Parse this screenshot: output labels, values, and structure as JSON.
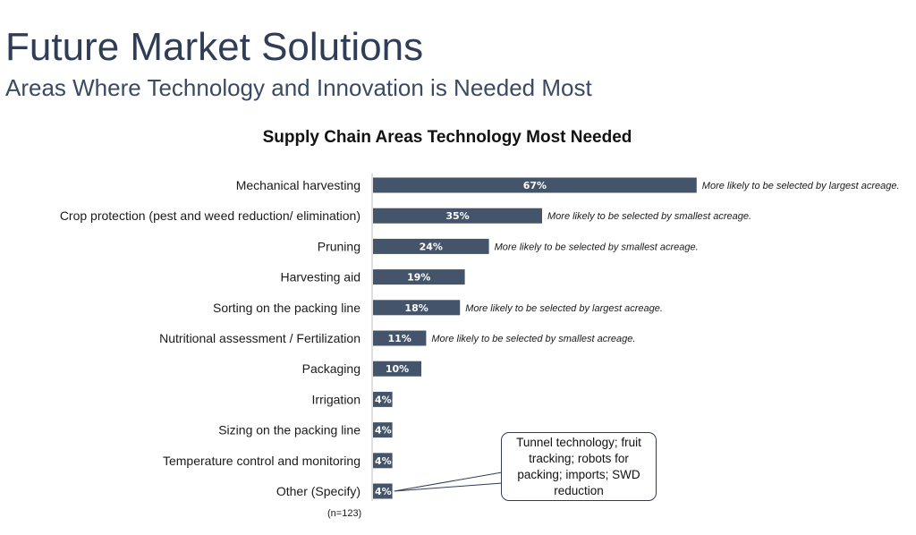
{
  "slide": {
    "title": "Future Market Solutions",
    "subtitle": "Areas Where Technology and Innovation is Needed Most"
  },
  "chart_data": {
    "type": "bar",
    "orientation": "horizontal",
    "title": "Supply Chain Areas Technology Most Needed",
    "xlabel": "",
    "ylabel": "",
    "xlim": [
      0,
      100
    ],
    "grid": false,
    "bar_color": "#44546a",
    "categories": [
      "Mechanical harvesting",
      "Crop protection (pest and weed reduction/ elimination)",
      "Pruning",
      "Harvesting aid",
      "Sorting on the packing line",
      "Nutritional assessment / Fertilization",
      "Packaging",
      "Irrigation",
      "Sizing on the packing line",
      "Temperature control and monitoring",
      "Other (Specify)"
    ],
    "values": [
      67,
      35,
      24,
      19,
      18,
      11,
      10,
      4,
      4,
      4,
      4
    ],
    "value_labels": [
      "67%",
      "35%",
      "24%",
      "19%",
      "18%",
      "11%",
      "10%",
      "4%",
      "4%",
      "4%",
      "4%"
    ],
    "annotations": [
      "More likely to be selected by largest acreage.",
      "More likely to be selected by smallest acreage.",
      "More likely to be selected by smallest acreage.",
      "",
      "More likely to be selected by largest acreage.",
      "More likely to be selected by smallest acreage.",
      "",
      "",
      "",
      "",
      ""
    ],
    "callout": {
      "text": "Tunnel technology; fruit tracking; robots for packing; imports; SWD reduction",
      "points_to": "Other (Specify)"
    },
    "sample_size": "(n=123)"
  }
}
